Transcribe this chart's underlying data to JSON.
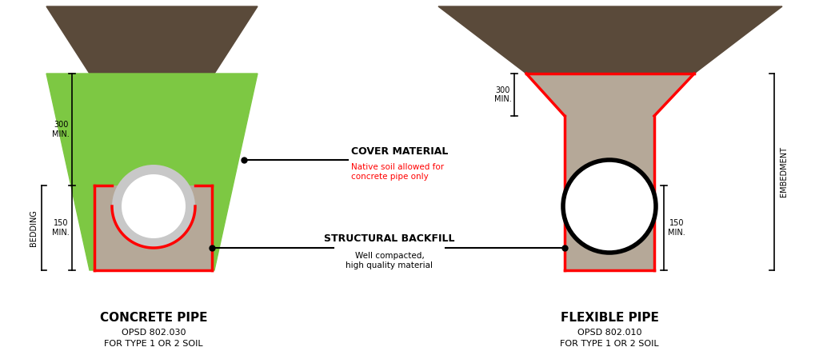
{
  "bg_color": "#ffffff",
  "dark_soil_color": "#5a4a3a",
  "green_cover_color": "#7dc843",
  "structural_fill_color": "#b5a898",
  "pipe_gray_color": "#c8c8c8",
  "red_outline_color": "#ff0000",
  "black_color": "#000000",
  "white_color": "#ffffff",
  "title_left": "CONCRETE PIPE",
  "subtitle_left1": "OPSD 802.030",
  "subtitle_left2": "FOR TYPE 1 OR 2 SOIL",
  "title_right": "FLEXIBLE PIPE",
  "subtitle_right1": "OPSD 802.010",
  "subtitle_right2": "FOR TYPE 1 OR 2 SOIL",
  "label_cover": "COVER MATERIAL",
  "label_cover_sub": "Native soil allowed for\nconcrete pipe only",
  "label_struct": "STRUCTURAL BACKFILL",
  "label_struct_sub": "Well compacted,\nhigh quality material",
  "label_bedding": "BEDDING",
  "label_embedment": "EMBEDMENT",
  "label_300": "300\nMIN.",
  "label_150": "150\nMIN."
}
